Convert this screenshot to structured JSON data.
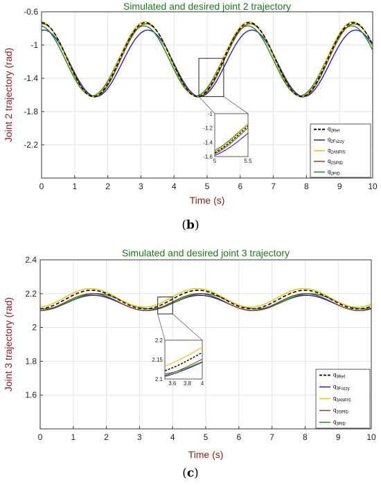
{
  "chart_data": [
    {
      "panel": "b",
      "type": "line",
      "caption_letter": "b",
      "title": "Simulated and desired joint 2 trajectory",
      "xlabel": "Time (s)",
      "ylabel": "Joint 2 trajectory (rad)",
      "xlim": [
        0,
        10
      ],
      "ylim": [
        -2.6,
        -0.6
      ],
      "xticks": [
        0,
        1,
        2,
        3,
        4,
        5,
        6,
        7,
        8,
        9,
        10
      ],
      "yticks": [
        -0.6,
        -1,
        -1.4,
        -1.8,
        -2.2
      ],
      "grid": true,
      "legend_position": "bottom-right",
      "curve_model": "y = c + a*cos(2*pi*(t - p)/T)",
      "series": [
        {
          "name": "q2Ref",
          "label": "q",
          "sub": "2Ref",
          "color": "#000000",
          "dash": true,
          "c": -1.175,
          "a": 0.445,
          "T": 3.14,
          "p": 0.0
        },
        {
          "name": "q2Fuzzy",
          "label": "q",
          "sub": "2Fuzzy",
          "color": "#1f1fbf",
          "dash": false,
          "c": -1.22,
          "a": 0.4,
          "T": 3.14,
          "p": 0.07
        },
        {
          "name": "q2ANFIS",
          "label": "q",
          "sub": "2ANFIS",
          "color": "#e6c300",
          "dash": false,
          "c": -1.17,
          "a": 0.45,
          "T": 3.14,
          "p": -0.02
        },
        {
          "name": "q2SPID",
          "label": "q",
          "sub": "2SPID",
          "color": "#8b4513",
          "dash": false,
          "c": -1.185,
          "a": 0.44,
          "T": 3.14,
          "p": 0.02
        },
        {
          "name": "q2PID",
          "label": "q",
          "sub": "2PID",
          "color": "#1a8c1a",
          "dash": false,
          "c": -1.19,
          "a": 0.42,
          "T": 3.14,
          "p": -0.05
        }
      ],
      "inset": {
        "xlim": [
          5,
          5.5
        ],
        "ylim": [
          -1.6,
          -1.0
        ],
        "xticks": [
          5,
          5.5
        ],
        "yticks": [
          -1,
          -1.2,
          -1.4,
          -1.6
        ],
        "zoom_box": {
          "x": [
            4.75,
            5.5
          ],
          "y": [
            -1.62,
            -1.16
          ]
        }
      }
    },
    {
      "panel": "c",
      "type": "line",
      "caption_letter": "c",
      "title": "Simulated and desired joint 3 trajectory",
      "xlabel": "Time (s)",
      "ylabel": "Joint 3 trajectory (rad)",
      "xlim": [
        0,
        10
      ],
      "ylim": [
        1.4,
        2.4
      ],
      "xticks": [
        0,
        1,
        2,
        3,
        4,
        5,
        6,
        7,
        8,
        9,
        10
      ],
      "yticks": [
        2.4,
        2.2,
        2,
        1.8,
        1.6
      ],
      "grid": true,
      "legend_position": "bottom-right",
      "curve_model": "y = c + a*sin(2*pi*(t - p)/T)",
      "series": [
        {
          "name": "q3Ref",
          "label": "q",
          "sub": "3Ref",
          "color": "#000000",
          "dash": true,
          "c": 2.165,
          "a": 0.055,
          "T": 3.22,
          "p": 0.75
        },
        {
          "name": "q3Fuzzy",
          "label": "q",
          "sub": "3Fuzzy",
          "color": "#1f1fbf",
          "dash": false,
          "c": 2.145,
          "a": 0.045,
          "T": 3.22,
          "p": 0.8
        },
        {
          "name": "q3ANFIS",
          "label": "q",
          "sub": "3ANFIS",
          "color": "#e6c300",
          "dash": false,
          "c": 2.175,
          "a": 0.055,
          "T": 3.22,
          "p": 0.72
        },
        {
          "name": "q3SPID",
          "label": "q",
          "sub": "3SPID",
          "color": "#8b4513",
          "dash": false,
          "c": 2.15,
          "a": 0.05,
          "T": 3.22,
          "p": 0.77
        },
        {
          "name": "q3PID",
          "label": "q",
          "sub": "3PID",
          "color": "#1a8c1a",
          "dash": false,
          "c": 2.155,
          "a": 0.045,
          "T": 3.22,
          "p": 0.9
        }
      ],
      "inset": {
        "xlim": [
          3.5,
          4
        ],
        "ylim": [
          2.1,
          2.2
        ],
        "xticks": [
          3.6,
          3.8,
          4
        ],
        "yticks": [
          2.2,
          2.15,
          2.1
        ],
        "zoom_box": {
          "x": [
            3.55,
            4.0
          ],
          "y": [
            2.08,
            2.18
          ]
        }
      }
    }
  ]
}
